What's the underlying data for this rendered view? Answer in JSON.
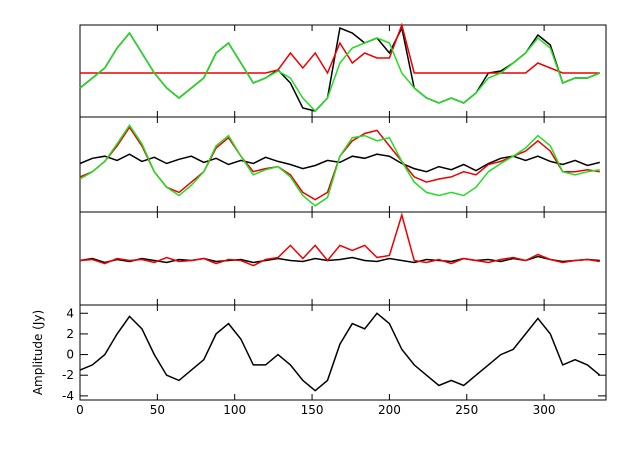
{
  "chart_data": [
    {
      "type": "line",
      "xlim": [
        0,
        340
      ],
      "ylim": [
        -4.4,
        4.8
      ],
      "x": [
        0,
        8,
        16,
        24,
        32,
        40,
        48,
        56,
        64,
        72,
        80,
        88,
        96,
        104,
        112,
        120,
        128,
        136,
        144,
        152,
        160,
        168,
        176,
        184,
        192,
        200,
        208,
        216,
        224,
        232,
        240,
        248,
        256,
        264,
        272,
        280,
        288,
        296,
        304,
        312,
        320,
        328,
        336
      ],
      "series": [
        {
          "color": "#000000",
          "values": [
            -1.5,
            -0.5,
            0.5,
            2.5,
            4,
            2,
            0,
            -1.5,
            -2.5,
            -1.5,
            -0.5,
            2,
            3,
            1,
            -1,
            -0.5,
            0.3,
            -1,
            -3.5,
            -3.8,
            -2.5,
            4.5,
            4,
            3,
            3.5,
            2,
            4.5,
            -1.5,
            -2.5,
            -3,
            -2.5,
            -3,
            -2,
            0,
            0.2,
            1,
            2,
            3.8,
            2.8,
            -1,
            -0.5,
            -0.5,
            0
          ]
        },
        {
          "color": "#ee0000",
          "values": [
            0,
            0,
            0,
            0,
            0,
            0,
            0,
            0,
            0,
            0,
            0,
            0,
            0,
            0,
            0,
            0,
            0.3,
            2,
            0.5,
            2,
            0,
            3,
            1,
            2,
            1.5,
            1.5,
            4.8,
            0,
            0,
            0,
            0,
            0,
            0,
            0,
            0,
            0,
            0,
            1,
            0.5,
            0,
            0,
            0,
            0
          ]
        },
        {
          "color": "#22dd22",
          "values": [
            -1.5,
            -0.5,
            0.5,
            2.5,
            4,
            2,
            0,
            -1.5,
            -2.5,
            -1.5,
            -0.5,
            2,
            3,
            1,
            -1,
            -0.5,
            0.2,
            -0.5,
            -2.5,
            -3.8,
            -2.5,
            1,
            2.5,
            3,
            3.5,
            3,
            0,
            -1.5,
            -2.5,
            -3,
            -2.5,
            -3,
            -2,
            -0.5,
            0,
            1,
            2,
            3.5,
            2.5,
            -1,
            -0.5,
            -0.5,
            0
          ]
        }
      ]
    },
    {
      "type": "line",
      "xlim": [
        0,
        340
      ],
      "ylim": [
        -4.4,
        4.8
      ],
      "x": [
        0,
        8,
        16,
        24,
        32,
        40,
        48,
        56,
        64,
        72,
        80,
        88,
        96,
        104,
        112,
        120,
        128,
        136,
        144,
        152,
        160,
        168,
        176,
        184,
        192,
        200,
        208,
        216,
        224,
        232,
        240,
        248,
        256,
        264,
        272,
        280,
        288,
        296,
        304,
        312,
        320,
        328,
        336
      ],
      "series": [
        {
          "color": "#000000",
          "values": [
            0.3,
            0.8,
            1,
            0.6,
            1.2,
            0.5,
            0.9,
            0.3,
            0.7,
            1,
            0.4,
            0.8,
            0.2,
            0.6,
            0.3,
            0.9,
            0.5,
            0.2,
            -0.2,
            0.1,
            0.6,
            0.4,
            1,
            0.8,
            1.2,
            1,
            0.3,
            -0.2,
            -0.5,
            0,
            -0.3,
            0.2,
            -0.4,
            0.3,
            0.8,
            1,
            0.6,
            1,
            0.5,
            0.2,
            0.6,
            0.1,
            0.4
          ]
        },
        {
          "color": "#ee0000",
          "values": [
            -1,
            -0.5,
            0.5,
            2,
            3.8,
            2,
            -0.5,
            -2,
            -2.5,
            -1.5,
            -0.5,
            1.8,
            2.8,
            1,
            -0.5,
            -0.2,
            0,
            -0.8,
            -2.5,
            -3.2,
            -2.5,
            1,
            2.5,
            3.2,
            3.5,
            2,
            0.5,
            -1,
            -1.5,
            -1.2,
            -1,
            -0.5,
            -0.8,
            0.2,
            0.5,
            1,
            1.5,
            2.5,
            1.5,
            -0.5,
            -0.5,
            -0.3,
            -0.5
          ]
        },
        {
          "color": "#22dd22",
          "values": [
            -1.2,
            -0.5,
            0.5,
            2.2,
            4,
            2.2,
            -0.5,
            -2,
            -2.8,
            -1.8,
            -0.5,
            2,
            3,
            1,
            -0.8,
            -0.3,
            0,
            -1,
            -2.8,
            -3.8,
            -3,
            1,
            2.8,
            3,
            2.5,
            2.8,
            0.5,
            -1.5,
            -2.5,
            -2.8,
            -2.5,
            -2.8,
            -2,
            -0.5,
            0.3,
            1,
            1.8,
            3,
            2,
            -0.5,
            -0.8,
            -0.5,
            -0.3
          ]
        }
      ]
    },
    {
      "type": "line",
      "xlim": [
        0,
        340
      ],
      "ylim": [
        -4.4,
        4.8
      ],
      "x": [
        0,
        8,
        16,
        24,
        32,
        40,
        48,
        56,
        64,
        72,
        80,
        88,
        96,
        104,
        112,
        120,
        128,
        136,
        144,
        152,
        160,
        168,
        176,
        184,
        192,
        200,
        208,
        216,
        224,
        232,
        240,
        248,
        256,
        264,
        272,
        280,
        288,
        296,
        304,
        312,
        320,
        328,
        336
      ],
      "series": [
        {
          "color": "#000000",
          "values": [
            0,
            0.2,
            -0.2,
            0.1,
            -0.1,
            0.2,
            0,
            -0.2,
            0.1,
            0,
            0.2,
            -0.1,
            0,
            0.1,
            -0.2,
            0,
            0.2,
            0,
            -0.1,
            0.2,
            0,
            0.1,
            0.3,
            0,
            -0.1,
            0.2,
            0,
            -0.2,
            0.1,
            0,
            -0.1,
            0.2,
            0,
            0.1,
            -0.1,
            0.2,
            0,
            0.4,
            0.1,
            -0.1,
            0,
            0.1,
            0
          ]
        },
        {
          "color": "#ee0000",
          "values": [
            0,
            0.1,
            -0.3,
            0.2,
            0,
            0.1,
            -0.2,
            0.3,
            -0.1,
            0,
            0.2,
            -0.3,
            0.1,
            0,
            -0.5,
            0.1,
            0.3,
            1.5,
            0.2,
            1.5,
            0,
            1.5,
            1,
            1.5,
            0.3,
            0.5,
            4.5,
            0,
            -0.2,
            0.1,
            -0.3,
            0.2,
            0,
            -0.2,
            0.1,
            0.3,
            0,
            0.6,
            0.1,
            -0.2,
            0,
            0.1,
            -0.1
          ]
        }
      ]
    },
    {
      "type": "line",
      "ylabel": "Amplitude (Jy)",
      "xlim": [
        0,
        340
      ],
      "ylim": [
        -4.4,
        4.8
      ],
      "xticks": [
        0,
        50,
        100,
        150,
        200,
        250,
        300
      ],
      "yticks": [
        -4,
        -2,
        0,
        2,
        4
      ],
      "x": [
        0,
        8,
        16,
        24,
        32,
        40,
        48,
        56,
        64,
        72,
        80,
        88,
        96,
        104,
        112,
        120,
        128,
        136,
        144,
        152,
        160,
        168,
        176,
        184,
        192,
        200,
        208,
        216,
        224,
        232,
        240,
        248,
        256,
        264,
        272,
        280,
        288,
        296,
        304,
        312,
        320,
        328,
        336
      ],
      "series": [
        {
          "color": "#000000",
          "values": [
            -1.5,
            -1,
            0,
            2,
            3.7,
            2.5,
            0,
            -2,
            -2.5,
            -1.5,
            -0.5,
            2,
            3,
            1.5,
            -1,
            -1,
            0,
            -1,
            -2.5,
            -3.5,
            -2.5,
            1,
            3,
            2.5,
            4,
            3,
            0.5,
            -1,
            -2,
            -3,
            -2.5,
            -3,
            -2,
            -1,
            0,
            0.5,
            2,
            3.5,
            2,
            -1,
            -0.5,
            -1,
            -2
          ]
        }
      ]
    }
  ]
}
